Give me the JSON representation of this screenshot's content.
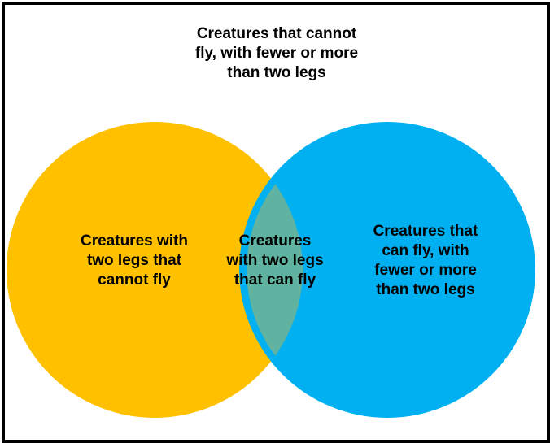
{
  "diagram": {
    "outside_label": "Creatures that cannot\nfly, with fewer or more\nthan two legs",
    "left_circle_label": "Creatures with\ntwo legs that\ncannot fly",
    "overlap_label": "Creatures\nwith two legs\nthat can fly",
    "right_circle_label": "Creatures that\ncan fly, with\nfewer or more\nthan two legs"
  },
  "colors": {
    "left_circle": "#FFC000",
    "right_circle": "#00B0F0",
    "overlap": "#5FB3A0",
    "frame": "#000000"
  }
}
